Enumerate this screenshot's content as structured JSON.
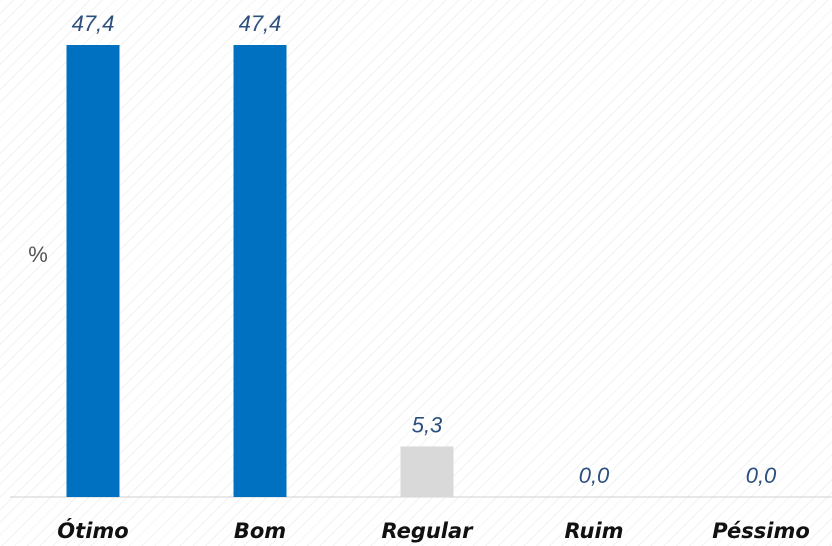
{
  "chart_data": {
    "type": "bar",
    "categories": [
      "Ótimo",
      "Bom",
      "Regular",
      "Ruim",
      "Péssimo"
    ],
    "values": [
      47.4,
      47.4,
      5.3,
      0.0,
      0.0
    ],
    "value_labels": [
      "47,4",
      "47,4",
      "5,3",
      "0,0",
      "0,0"
    ],
    "ylabel": "%",
    "ylim": [
      0,
      47.4
    ],
    "grid": false,
    "legend": "none",
    "colors": {
      "Ótimo": "#0070c0",
      "Bom": "#0070c0",
      "Regular": "#d9d9d9",
      "Ruim": "#d9d9d9",
      "Péssimo": "#d9d9d9"
    }
  }
}
